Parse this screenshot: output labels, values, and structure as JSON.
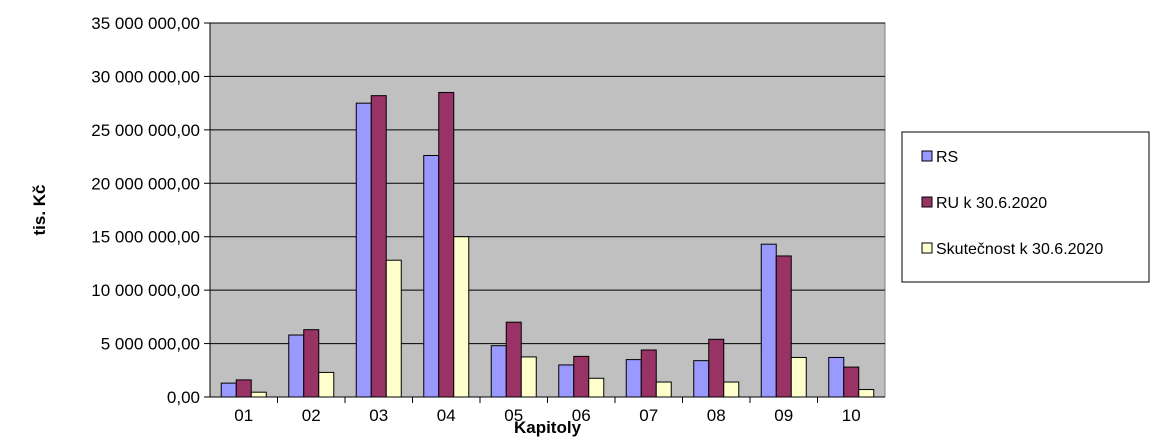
{
  "chart_data": {
    "type": "bar",
    "categories": [
      "01",
      "02",
      "03",
      "04",
      "05",
      "06",
      "07",
      "08",
      "09",
      "10"
    ],
    "series": [
      {
        "name": "RS",
        "color": "#9999ff",
        "values": [
          1300000,
          5800000,
          27500000,
          22600000,
          4800000,
          3000000,
          3500000,
          3400000,
          14300000,
          3700000
        ]
      },
      {
        "name": "RU k 30.6.2020",
        "color": "#993366",
        "values": [
          1600000,
          6300000,
          28200000,
          28500000,
          7000000,
          3800000,
          4400000,
          5400000,
          13200000,
          2800000
        ]
      },
      {
        "name": "Skutečnost k 30.6.2020",
        "color": "#ffffcc",
        "values": [
          450000,
          2300000,
          12800000,
          15000000,
          3750000,
          1750000,
          1400000,
          1400000,
          3700000,
          700000
        ]
      }
    ],
    "xlabel": "Kapitoly",
    "ylabel": "tis. Kč",
    "ylim": [
      0,
      35000000
    ],
    "yticks": [
      "0,00",
      "5 000 000,00",
      "10 000 000,00",
      "15 000 000,00",
      "20 000 000,00",
      "25 000 000,00",
      "30 000 000,00",
      "35 000 000,00"
    ],
    "grid": true,
    "plot_background": "#c0c0c0",
    "legend_position": "right"
  }
}
